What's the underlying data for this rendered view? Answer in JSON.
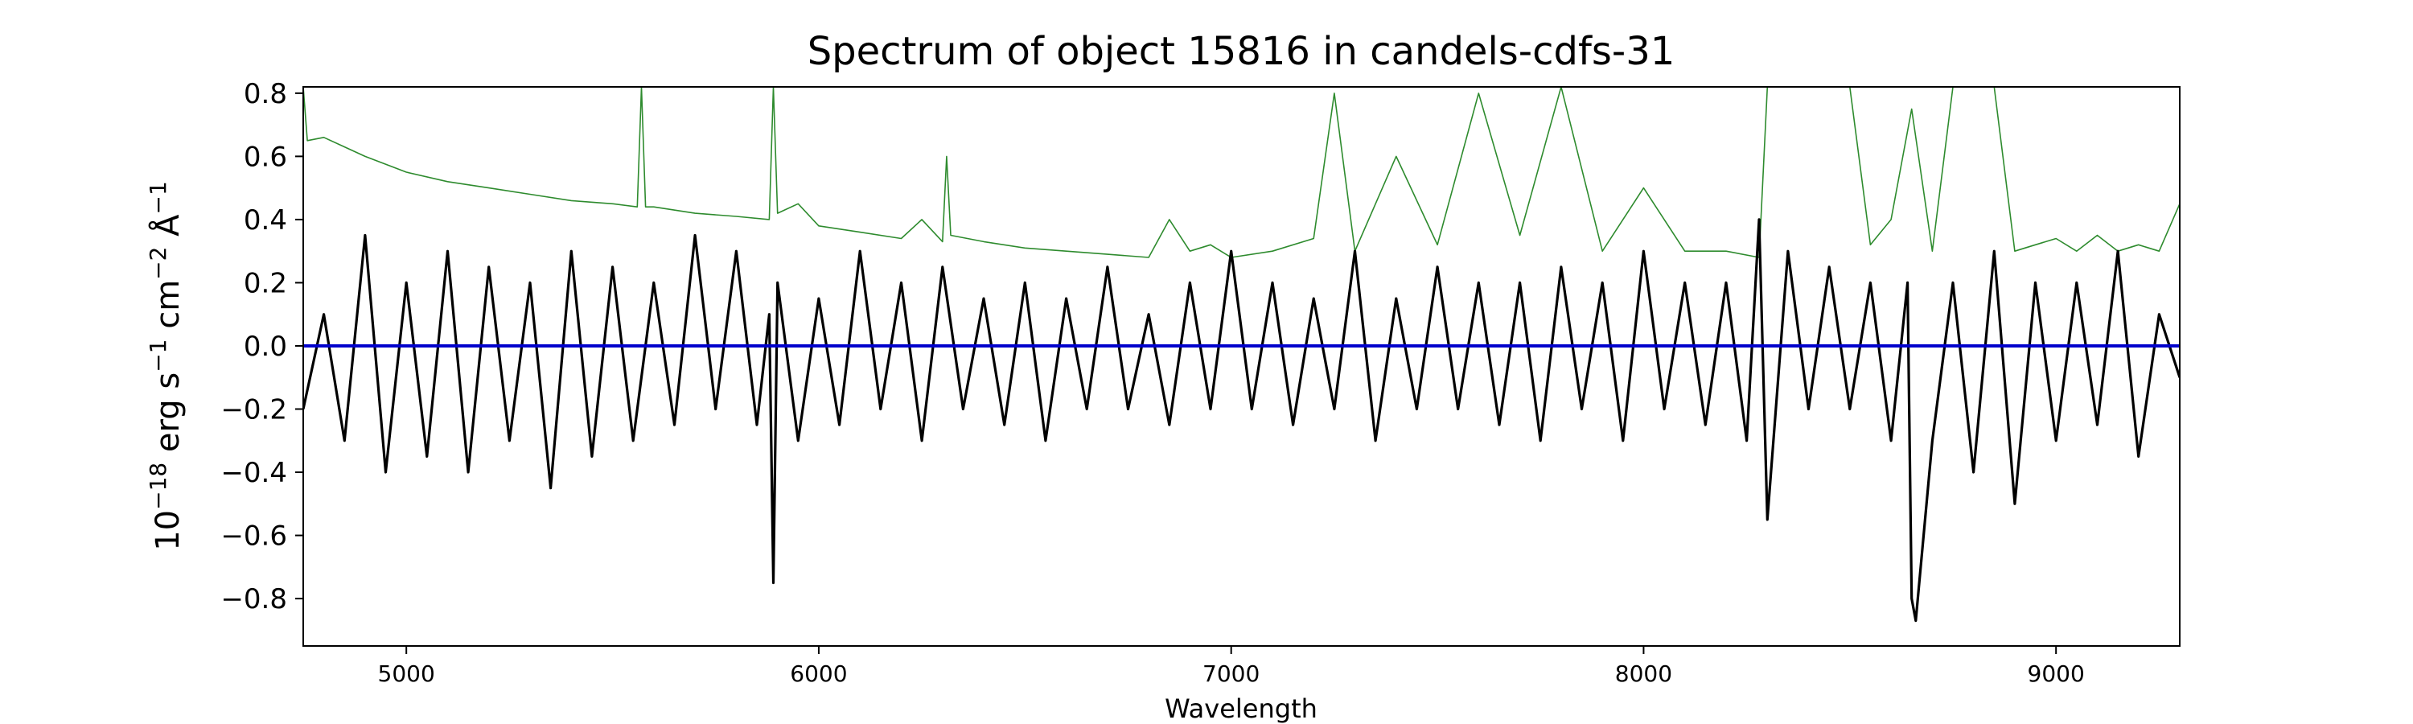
{
  "chart_data": {
    "type": "line",
    "title": "Spectrum of object 15816 in candels-cdfs-31",
    "xlabel": "Wavelength",
    "ylabel": {
      "base": "10",
      "exp1": "−18",
      "mid1": " erg s",
      "exp2": "−1",
      "mid2": " cm",
      "exp3": "−2",
      "mid3": " Å",
      "exp4": "−1"
    },
    "xlim": [
      4750,
      9300
    ],
    "ylim": [
      -0.95,
      0.82
    ],
    "x_ticks": [
      5000,
      6000,
      7000,
      8000,
      9000
    ],
    "x_tick_labels": [
      "5000",
      "6000",
      "7000",
      "8000",
      "9000"
    ],
    "y_ticks": [
      -0.8,
      -0.6,
      -0.4,
      -0.2,
      0.0,
      0.2,
      0.4,
      0.6,
      0.8
    ],
    "y_tick_labels": [
      "−0.8",
      "−0.6",
      "−0.4",
      "−0.2",
      "0.0",
      "0.2",
      "0.4",
      "0.6",
      "0.8"
    ],
    "grid": false,
    "series": [
      {
        "role": "flux",
        "color": "#000000",
        "x": [
          4750,
          4800,
          4850,
          4900,
          4950,
          5000,
          5050,
          5100,
          5150,
          5200,
          5250,
          5300,
          5350,
          5400,
          5450,
          5500,
          5550,
          5600,
          5650,
          5700,
          5750,
          5800,
          5850,
          5880,
          5890,
          5900,
          5950,
          6000,
          6050,
          6100,
          6150,
          6200,
          6250,
          6300,
          6350,
          6400,
          6450,
          6500,
          6550,
          6600,
          6650,
          6700,
          6750,
          6800,
          6850,
          6900,
          6950,
          7000,
          7050,
          7100,
          7150,
          7200,
          7250,
          7300,
          7350,
          7400,
          7450,
          7500,
          7550,
          7600,
          7650,
          7700,
          7750,
          7800,
          7850,
          7900,
          7950,
          8000,
          8050,
          8100,
          8150,
          8200,
          8250,
          8280,
          8300,
          8350,
          8400,
          8450,
          8500,
          8550,
          8600,
          8640,
          8650,
          8660,
          8700,
          8750,
          8800,
          8850,
          8900,
          8950,
          9000,
          9050,
          9100,
          9150,
          9200,
          9250,
          9300
        ],
        "values": [
          -0.2,
          0.1,
          -0.3,
          0.35,
          -0.4,
          0.2,
          -0.35,
          0.3,
          -0.4,
          0.25,
          -0.3,
          0.2,
          -0.45,
          0.3,
          -0.35,
          0.25,
          -0.3,
          0.2,
          -0.25,
          0.35,
          -0.2,
          0.3,
          -0.25,
          0.1,
          -0.75,
          0.2,
          -0.3,
          0.15,
          -0.25,
          0.3,
          -0.2,
          0.2,
          -0.3,
          0.25,
          -0.2,
          0.15,
          -0.25,
          0.2,
          -0.3,
          0.15,
          -0.2,
          0.25,
          -0.2,
          0.1,
          -0.25,
          0.2,
          -0.2,
          0.3,
          -0.2,
          0.2,
          -0.25,
          0.15,
          -0.2,
          0.3,
          -0.3,
          0.15,
          -0.2,
          0.25,
          -0.2,
          0.2,
          -0.25,
          0.2,
          -0.3,
          0.25,
          -0.2,
          0.2,
          -0.3,
          0.3,
          -0.2,
          0.2,
          -0.25,
          0.2,
          -0.3,
          0.4,
          -0.55,
          0.3,
          -0.2,
          0.25,
          -0.2,
          0.2,
          -0.3,
          0.2,
          -0.8,
          -0.87,
          -0.3,
          0.2,
          -0.4,
          0.3,
          -0.5,
          0.2,
          -0.3,
          0.2,
          -0.25,
          0.3,
          -0.35,
          0.1,
          -0.1
        ]
      },
      {
        "role": "error",
        "color": "#2e8b2e",
        "x": [
          4750,
          4760,
          4800,
          4850,
          4900,
          5000,
          5100,
          5200,
          5300,
          5400,
          5500,
          5560,
          5570,
          5580,
          5600,
          5700,
          5800,
          5880,
          5890,
          5900,
          5950,
          6000,
          6100,
          6200,
          6250,
          6300,
          6310,
          6320,
          6400,
          6500,
          6600,
          6700,
          6800,
          6850,
          6900,
          6950,
          7000,
          7100,
          7200,
          7250,
          7300,
          7400,
          7500,
          7600,
          7700,
          7800,
          7900,
          8000,
          8100,
          8200,
          8280,
          8300,
          8350,
          8400,
          8450,
          8500,
          8550,
          8600,
          8650,
          8700,
          8750,
          8800,
          8850,
          8900,
          8950,
          9000,
          9050,
          9100,
          9150,
          9200,
          9250,
          9300
        ],
        "values": [
          0.82,
          0.65,
          0.66,
          0.63,
          0.6,
          0.55,
          0.52,
          0.5,
          0.48,
          0.46,
          0.45,
          0.44,
          0.82,
          0.44,
          0.44,
          0.42,
          0.41,
          0.4,
          0.82,
          0.42,
          0.45,
          0.38,
          0.36,
          0.34,
          0.4,
          0.33,
          0.6,
          0.35,
          0.33,
          0.31,
          0.3,
          0.29,
          0.28,
          0.4,
          0.3,
          0.32,
          0.28,
          0.3,
          0.34,
          0.8,
          0.3,
          0.6,
          0.32,
          0.8,
          0.35,
          0.82,
          0.3,
          0.5,
          0.3,
          0.3,
          0.28,
          0.82,
          0.82,
          0.82,
          0.82,
          0.82,
          0.32,
          0.4,
          0.75,
          0.3,
          0.82,
          0.82,
          0.82,
          0.3,
          0.32,
          0.34,
          0.3,
          0.35,
          0.3,
          0.32,
          0.3,
          0.45
        ]
      },
      {
        "role": "zero",
        "color": "#0000cc",
        "x": [
          4750,
          9300
        ],
        "values": [
          0.0,
          0.0
        ]
      }
    ]
  }
}
